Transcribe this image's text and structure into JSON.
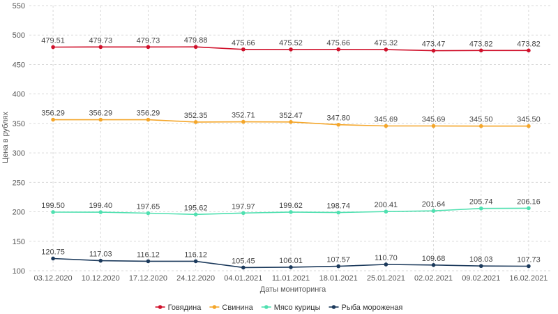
{
  "chart_data": {
    "type": "line",
    "title": "",
    "xlabel": "Даты мониторинга",
    "ylabel": "Цена в рублях",
    "ylim": [
      100,
      550
    ],
    "yticks": [
      100,
      150,
      200,
      250,
      300,
      350,
      400,
      450,
      500,
      550
    ],
    "grid": true,
    "legend_position": "bottom-center",
    "categories": [
      "03.12.2020",
      "10.12.2020",
      "17.12.2020",
      "24.12.2020",
      "04.01.2021",
      "11.01.2021",
      "18.01.2021",
      "25.01.2021",
      "02.02.2021",
      "09.02.2021",
      "16.02.2021"
    ],
    "series": [
      {
        "name": "Говядина",
        "color": "#d0112b",
        "values": [
          479.51,
          479.73,
          479.73,
          479.88,
          475.66,
          475.52,
          475.66,
          475.32,
          473.47,
          473.82,
          473.82
        ],
        "labels": [
          "479.51",
          "479.73",
          "479.73",
          "479.88",
          "475.66",
          "475.52",
          "475.66",
          "475.32",
          "473.47",
          "473.82",
          "473.82"
        ]
      },
      {
        "name": "Свинина",
        "color": "#f4a62a",
        "values": [
          356.29,
          356.29,
          356.29,
          352.35,
          352.71,
          352.47,
          347.8,
          345.69,
          345.69,
          345.5,
          345.5
        ],
        "labels": [
          "356.29",
          "356.29",
          "356.29",
          "352.35",
          "352.71",
          "352.47",
          "347.80",
          "345.69",
          "345.69",
          "345.50",
          "345.50"
        ]
      },
      {
        "name": "Мясо курицы",
        "color": "#4fe0b0",
        "values": [
          199.5,
          199.4,
          197.65,
          195.62,
          197.97,
          199.62,
          198.74,
          200.41,
          201.64,
          205.74,
          206.16
        ],
        "labels": [
          "199.50",
          "199.40",
          "197.65",
          "195.62",
          "197.97",
          "199.62",
          "198.74",
          "200.41",
          "201.64",
          "205.74",
          "206.16"
        ]
      },
      {
        "name": "Рыба мороженая",
        "color": "#1c3a5c",
        "values": [
          120.75,
          117.03,
          116.12,
          116.12,
          105.45,
          106.01,
          107.57,
          110.7,
          109.68,
          108.03,
          107.73
        ],
        "labels": [
          "120.75",
          "117.03",
          "116.12",
          "116.12",
          "105.45",
          "106.01",
          "107.57",
          "110.70",
          "109.68",
          "108.03",
          "107.73"
        ]
      }
    ]
  }
}
